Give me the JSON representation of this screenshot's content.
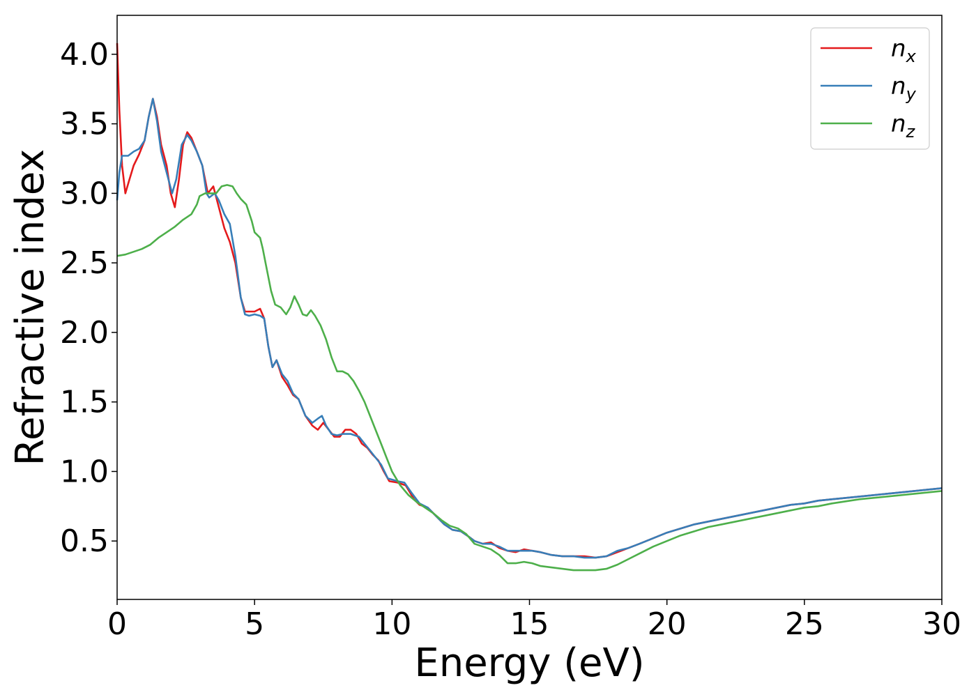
{
  "chart_data": {
    "type": "line",
    "xlabel": "Energy (eV)",
    "ylabel": "Refractive index",
    "xlim": [
      0,
      30
    ],
    "ylim": [
      0.08,
      4.28
    ],
    "xticks": [
      0,
      5,
      10,
      15,
      20,
      25,
      30
    ],
    "xtick_labels": [
      "0",
      "5",
      "10",
      "15",
      "20",
      "25",
      "30"
    ],
    "yticks": [
      0.5,
      1.0,
      1.5,
      2.0,
      2.5,
      3.0,
      3.5,
      4.0
    ],
    "ytick_labels": [
      "0.5",
      "1.0",
      "1.5",
      "2.0",
      "2.5",
      "3.0",
      "3.5",
      "4.0"
    ],
    "grid": false,
    "legend_position": "top-right",
    "series": [
      {
        "name": "n_x",
        "legend_base": "n",
        "legend_sub": "x",
        "color": "#e41a1c",
        "points": [
          [
            0,
            4.08
          ],
          [
            0.08,
            3.6
          ],
          [
            0.18,
            3.2
          ],
          [
            0.3,
            3.0
          ],
          [
            0.45,
            3.1
          ],
          [
            0.6,
            3.2
          ],
          [
            0.8,
            3.28
          ],
          [
            1.0,
            3.38
          ],
          [
            1.15,
            3.55
          ],
          [
            1.3,
            3.68
          ],
          [
            1.45,
            3.55
          ],
          [
            1.6,
            3.35
          ],
          [
            1.8,
            3.2
          ],
          [
            1.95,
            3.0
          ],
          [
            2.1,
            2.9
          ],
          [
            2.25,
            3.1
          ],
          [
            2.4,
            3.35
          ],
          [
            2.55,
            3.44
          ],
          [
            2.7,
            3.4
          ],
          [
            2.9,
            3.3
          ],
          [
            3.1,
            3.2
          ],
          [
            3.3,
            3.0
          ],
          [
            3.5,
            3.05
          ],
          [
            3.7,
            2.9
          ],
          [
            3.9,
            2.75
          ],
          [
            4.1,
            2.65
          ],
          [
            4.3,
            2.5
          ],
          [
            4.5,
            2.25
          ],
          [
            4.65,
            2.15
          ],
          [
            4.8,
            2.15
          ],
          [
            5.0,
            2.15
          ],
          [
            5.2,
            2.17
          ],
          [
            5.35,
            2.1
          ],
          [
            5.5,
            1.9
          ],
          [
            5.65,
            1.75
          ],
          [
            5.8,
            1.8
          ],
          [
            6.0,
            1.68
          ],
          [
            6.2,
            1.62
          ],
          [
            6.4,
            1.55
          ],
          [
            6.6,
            1.52
          ],
          [
            6.85,
            1.4
          ],
          [
            7.1,
            1.33
          ],
          [
            7.3,
            1.3
          ],
          [
            7.5,
            1.35
          ],
          [
            7.7,
            1.3
          ],
          [
            7.9,
            1.25
          ],
          [
            8.1,
            1.25
          ],
          [
            8.3,
            1.3
          ],
          [
            8.5,
            1.3
          ],
          [
            8.7,
            1.27
          ],
          [
            8.9,
            1.2
          ],
          [
            9.1,
            1.17
          ],
          [
            9.3,
            1.12
          ],
          [
            9.5,
            1.08
          ],
          [
            9.7,
            1.0
          ],
          [
            9.9,
            0.93
          ],
          [
            10.2,
            0.92
          ],
          [
            10.5,
            0.9
          ],
          [
            10.8,
            0.8
          ],
          [
            11.0,
            0.76
          ],
          [
            11.3,
            0.74
          ],
          [
            11.6,
            0.68
          ],
          [
            11.9,
            0.62
          ],
          [
            12.2,
            0.58
          ],
          [
            12.5,
            0.57
          ],
          [
            12.8,
            0.53
          ],
          [
            13.0,
            0.5
          ],
          [
            13.3,
            0.48
          ],
          [
            13.6,
            0.49
          ],
          [
            13.9,
            0.45
          ],
          [
            14.2,
            0.43
          ],
          [
            14.5,
            0.42
          ],
          [
            14.8,
            0.44
          ],
          [
            15.1,
            0.43
          ],
          [
            15.4,
            0.42
          ],
          [
            15.8,
            0.4
          ],
          [
            16.2,
            0.39
          ],
          [
            16.6,
            0.39
          ],
          [
            17.0,
            0.39
          ],
          [
            17.4,
            0.38
          ],
          [
            17.8,
            0.39
          ],
          [
            18.2,
            0.42
          ],
          [
            18.6,
            0.45
          ],
          [
            19.0,
            0.48
          ],
          [
            19.5,
            0.52
          ],
          [
            20.0,
            0.56
          ],
          [
            20.5,
            0.59
          ],
          [
            21.0,
            0.62
          ],
          [
            21.5,
            0.64
          ],
          [
            22.0,
            0.66
          ],
          [
            22.5,
            0.68
          ],
          [
            23.0,
            0.7
          ],
          [
            23.5,
            0.72
          ],
          [
            24.0,
            0.74
          ],
          [
            24.5,
            0.76
          ],
          [
            25.0,
            0.77
          ],
          [
            25.5,
            0.79
          ],
          [
            26.0,
            0.8
          ],
          [
            27.0,
            0.82
          ],
          [
            28.0,
            0.84
          ],
          [
            29.0,
            0.86
          ],
          [
            30.0,
            0.88
          ]
        ]
      },
      {
        "name": "n_y",
        "legend_base": "n",
        "legend_sub": "y",
        "color": "#377eb8",
        "points": [
          [
            0,
            2.95
          ],
          [
            0.08,
            3.15
          ],
          [
            0.18,
            3.27
          ],
          [
            0.4,
            3.27
          ],
          [
            0.6,
            3.3
          ],
          [
            0.8,
            3.32
          ],
          [
            1.0,
            3.38
          ],
          [
            1.15,
            3.55
          ],
          [
            1.3,
            3.68
          ],
          [
            1.45,
            3.52
          ],
          [
            1.6,
            3.3
          ],
          [
            1.8,
            3.15
          ],
          [
            2.0,
            3.0
          ],
          [
            2.15,
            3.1
          ],
          [
            2.35,
            3.35
          ],
          [
            2.55,
            3.42
          ],
          [
            2.7,
            3.38
          ],
          [
            2.9,
            3.3
          ],
          [
            3.1,
            3.2
          ],
          [
            3.25,
            3.0
          ],
          [
            3.35,
            2.97
          ],
          [
            3.55,
            3.0
          ],
          [
            3.7,
            2.95
          ],
          [
            3.9,
            2.85
          ],
          [
            4.1,
            2.78
          ],
          [
            4.3,
            2.55
          ],
          [
            4.5,
            2.25
          ],
          [
            4.65,
            2.13
          ],
          [
            4.8,
            2.12
          ],
          [
            5.0,
            2.13
          ],
          [
            5.2,
            2.12
          ],
          [
            5.35,
            2.1
          ],
          [
            5.5,
            1.9
          ],
          [
            5.65,
            1.75
          ],
          [
            5.8,
            1.8
          ],
          [
            6.0,
            1.7
          ],
          [
            6.2,
            1.65
          ],
          [
            6.4,
            1.56
          ],
          [
            6.6,
            1.52
          ],
          [
            6.85,
            1.4
          ],
          [
            7.1,
            1.35
          ],
          [
            7.3,
            1.38
          ],
          [
            7.45,
            1.4
          ],
          [
            7.6,
            1.33
          ],
          [
            7.8,
            1.27
          ],
          [
            8.0,
            1.26
          ],
          [
            8.2,
            1.27
          ],
          [
            8.5,
            1.27
          ],
          [
            8.8,
            1.25
          ],
          [
            9.0,
            1.2
          ],
          [
            9.2,
            1.15
          ],
          [
            9.4,
            1.1
          ],
          [
            9.6,
            1.05
          ],
          [
            9.85,
            0.95
          ],
          [
            10.2,
            0.93
          ],
          [
            10.45,
            0.92
          ],
          [
            10.7,
            0.85
          ],
          [
            11.0,
            0.77
          ],
          [
            11.3,
            0.74
          ],
          [
            11.6,
            0.68
          ],
          [
            11.9,
            0.62
          ],
          [
            12.2,
            0.58
          ],
          [
            12.5,
            0.57
          ],
          [
            12.8,
            0.53
          ],
          [
            13.0,
            0.5
          ],
          [
            13.3,
            0.48
          ],
          [
            13.6,
            0.48
          ],
          [
            13.9,
            0.46
          ],
          [
            14.2,
            0.43
          ],
          [
            14.5,
            0.43
          ],
          [
            14.8,
            0.43
          ],
          [
            15.1,
            0.43
          ],
          [
            15.4,
            0.42
          ],
          [
            15.8,
            0.4
          ],
          [
            16.2,
            0.39
          ],
          [
            16.6,
            0.39
          ],
          [
            17.0,
            0.38
          ],
          [
            17.4,
            0.38
          ],
          [
            17.8,
            0.39
          ],
          [
            18.2,
            0.43
          ],
          [
            18.6,
            0.45
          ],
          [
            19.0,
            0.48
          ],
          [
            19.5,
            0.52
          ],
          [
            20.0,
            0.56
          ],
          [
            20.5,
            0.59
          ],
          [
            21.0,
            0.62
          ],
          [
            21.5,
            0.64
          ],
          [
            22.0,
            0.66
          ],
          [
            22.5,
            0.68
          ],
          [
            23.0,
            0.7
          ],
          [
            23.5,
            0.72
          ],
          [
            24.0,
            0.74
          ],
          [
            24.5,
            0.76
          ],
          [
            25.0,
            0.77
          ],
          [
            25.5,
            0.79
          ],
          [
            26.0,
            0.8
          ],
          [
            27.0,
            0.82
          ],
          [
            28.0,
            0.84
          ],
          [
            29.0,
            0.86
          ],
          [
            30.0,
            0.88
          ]
        ]
      },
      {
        "name": "n_z",
        "legend_base": "n",
        "legend_sub": "z",
        "color": "#4daf4a",
        "points": [
          [
            0,
            2.55
          ],
          [
            0.3,
            2.56
          ],
          [
            0.6,
            2.58
          ],
          [
            0.9,
            2.6
          ],
          [
            1.2,
            2.63
          ],
          [
            1.5,
            2.68
          ],
          [
            1.8,
            2.72
          ],
          [
            2.1,
            2.76
          ],
          [
            2.4,
            2.81
          ],
          [
            2.7,
            2.85
          ],
          [
            2.9,
            2.92
          ],
          [
            3.0,
            2.98
          ],
          [
            3.2,
            3.0
          ],
          [
            3.4,
            3.0
          ],
          [
            3.6,
            3.0
          ],
          [
            3.8,
            3.05
          ],
          [
            4.0,
            3.06
          ],
          [
            4.2,
            3.05
          ],
          [
            4.35,
            3.0
          ],
          [
            4.5,
            2.96
          ],
          [
            4.7,
            2.92
          ],
          [
            4.9,
            2.8
          ],
          [
            5.0,
            2.72
          ],
          [
            5.2,
            2.68
          ],
          [
            5.3,
            2.6
          ],
          [
            5.4,
            2.5
          ],
          [
            5.6,
            2.3
          ],
          [
            5.75,
            2.2
          ],
          [
            5.95,
            2.18
          ],
          [
            6.15,
            2.13
          ],
          [
            6.3,
            2.18
          ],
          [
            6.45,
            2.26
          ],
          [
            6.6,
            2.2
          ],
          [
            6.75,
            2.13
          ],
          [
            6.9,
            2.12
          ],
          [
            7.05,
            2.16
          ],
          [
            7.2,
            2.12
          ],
          [
            7.4,
            2.05
          ],
          [
            7.6,
            1.95
          ],
          [
            7.8,
            1.82
          ],
          [
            8.0,
            1.72
          ],
          [
            8.2,
            1.72
          ],
          [
            8.4,
            1.7
          ],
          [
            8.6,
            1.65
          ],
          [
            8.8,
            1.58
          ],
          [
            9.0,
            1.5
          ],
          [
            9.2,
            1.4
          ],
          [
            9.4,
            1.3
          ],
          [
            9.6,
            1.2
          ],
          [
            9.8,
            1.1
          ],
          [
            10.0,
            1.0
          ],
          [
            10.3,
            0.9
          ],
          [
            10.6,
            0.83
          ],
          [
            10.9,
            0.78
          ],
          [
            11.2,
            0.74
          ],
          [
            11.5,
            0.7
          ],
          [
            11.8,
            0.65
          ],
          [
            12.1,
            0.61
          ],
          [
            12.4,
            0.59
          ],
          [
            12.7,
            0.55
          ],
          [
            13.0,
            0.48
          ],
          [
            13.3,
            0.46
          ],
          [
            13.6,
            0.44
          ],
          [
            13.9,
            0.4
          ],
          [
            14.2,
            0.34
          ],
          [
            14.5,
            0.34
          ],
          [
            14.8,
            0.35
          ],
          [
            15.1,
            0.34
          ],
          [
            15.4,
            0.32
          ],
          [
            15.8,
            0.31
          ],
          [
            16.2,
            0.3
          ],
          [
            16.6,
            0.29
          ],
          [
            17.0,
            0.29
          ],
          [
            17.4,
            0.29
          ],
          [
            17.8,
            0.3
          ],
          [
            18.2,
            0.33
          ],
          [
            18.6,
            0.37
          ],
          [
            19.0,
            0.41
          ],
          [
            19.5,
            0.46
          ],
          [
            20.0,
            0.5
          ],
          [
            20.5,
            0.54
          ],
          [
            21.0,
            0.57
          ],
          [
            21.5,
            0.6
          ],
          [
            22.0,
            0.62
          ],
          [
            22.5,
            0.64
          ],
          [
            23.0,
            0.66
          ],
          [
            23.5,
            0.68
          ],
          [
            24.0,
            0.7
          ],
          [
            24.5,
            0.72
          ],
          [
            25.0,
            0.74
          ],
          [
            25.5,
            0.75
          ],
          [
            26.0,
            0.77
          ],
          [
            27.0,
            0.8
          ],
          [
            28.0,
            0.82
          ],
          [
            29.0,
            0.84
          ],
          [
            30.0,
            0.86
          ]
        ]
      }
    ]
  }
}
